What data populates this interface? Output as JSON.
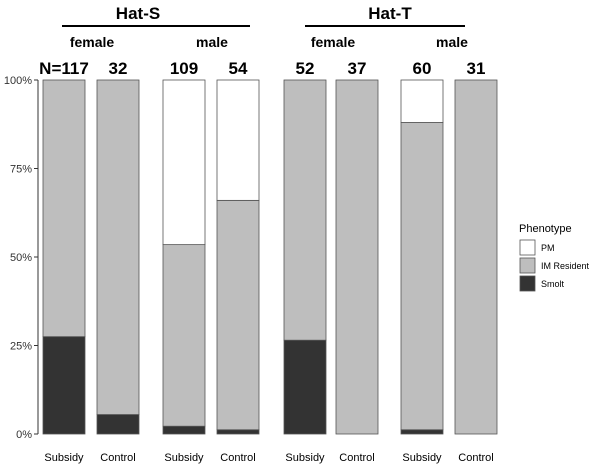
{
  "chart_data": {
    "type": "bar",
    "stacked": true,
    "title": "",
    "xlabel": "",
    "ylabel": "",
    "ylim": [
      0,
      100
    ],
    "yticks": [
      "0%",
      "25%",
      "50%",
      "75%",
      "100%"
    ],
    "ytick_values": [
      0,
      25,
      50,
      75,
      100
    ],
    "groups": [
      {
        "name": "Hat-S",
        "subgroups": [
          {
            "name": "female",
            "bars": [
              0,
              1
            ]
          },
          {
            "name": "male",
            "bars": [
              2,
              3
            ]
          }
        ]
      },
      {
        "name": "Hat-T",
        "subgroups": [
          {
            "name": "female",
            "bars": [
              4,
              5
            ]
          },
          {
            "name": "male",
            "bars": [
              6,
              7
            ]
          }
        ]
      }
    ],
    "categories": [
      "Subsidy",
      "Control",
      "Subsidy",
      "Control",
      "Subsidy",
      "Control",
      "Subsidy",
      "Control"
    ],
    "counts": [
      "N=117",
      "32",
      "109",
      "54",
      "52",
      "37",
      "60",
      "31"
    ],
    "series": [
      {
        "name": "Smolt",
        "color": "#333333",
        "values": [
          27.5,
          5.5,
          2.2,
          1.2,
          26.5,
          0,
          1.2,
          0
        ]
      },
      {
        "name": "IM Resident",
        "color": "#bebebe",
        "values": [
          72.5,
          94.5,
          51.3,
          64.8,
          73.5,
          100,
          86.8,
          100
        ]
      },
      {
        "name": "PM",
        "color": "#ffffff",
        "values": [
          0,
          0,
          46.5,
          34.0,
          0,
          0,
          12.0,
          0
        ]
      }
    ],
    "legend": {
      "title": "Phenotype",
      "position": "right",
      "entries": [
        "PM",
        "IM Resident",
        "Smolt"
      ]
    },
    "grid": false
  }
}
